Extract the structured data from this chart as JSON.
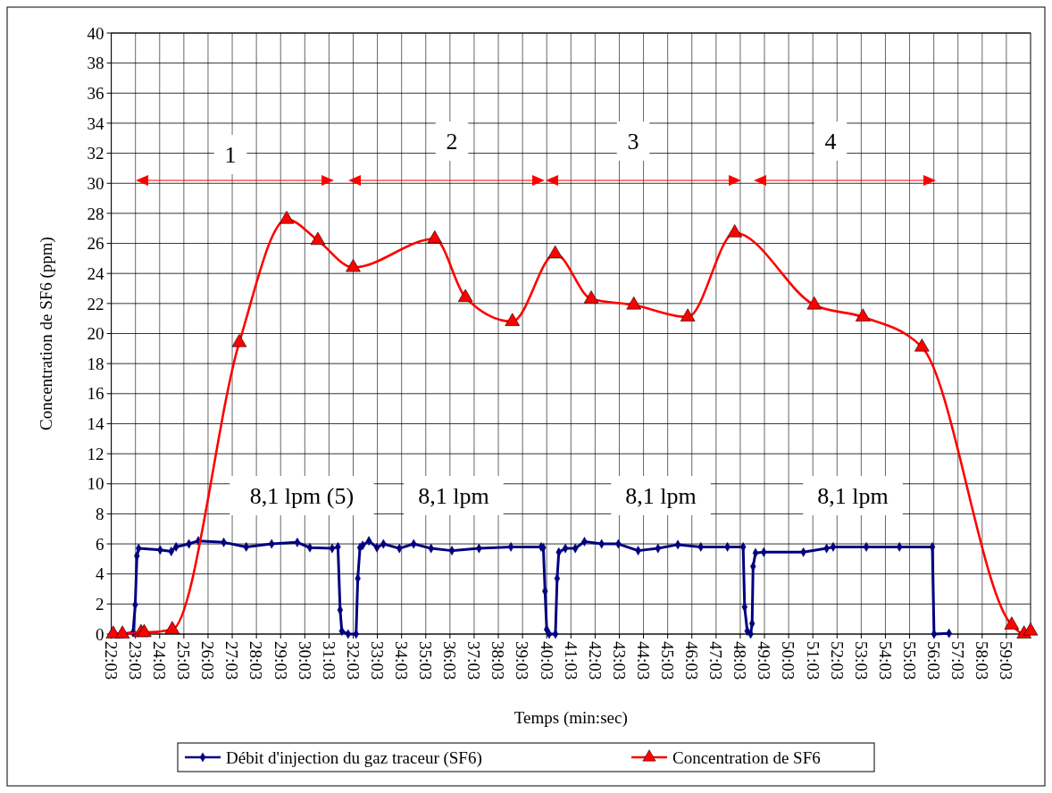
{
  "chart_data": {
    "type": "line",
    "xlabel": "Temps (min:sec)",
    "ylabel": "Concentration de SF6 (ppm)",
    "xlim": [
      22.05,
      60.05
    ],
    "xticks": [
      {
        "value": 22.05,
        "label": "22:03"
      },
      {
        "value": 23.05,
        "label": "23:03"
      },
      {
        "value": 24.05,
        "label": "24:03"
      },
      {
        "value": 25.05,
        "label": "25:03"
      },
      {
        "value": 26.05,
        "label": "26:03"
      },
      {
        "value": 27.05,
        "label": "27:03"
      },
      {
        "value": 28.05,
        "label": "28:03"
      },
      {
        "value": 29.05,
        "label": "29:03"
      },
      {
        "value": 30.05,
        "label": "30:03"
      },
      {
        "value": 31.05,
        "label": "31:03"
      },
      {
        "value": 32.05,
        "label": "32:03"
      },
      {
        "value": 33.05,
        "label": "33:03"
      },
      {
        "value": 34.05,
        "label": "34:03"
      },
      {
        "value": 35.05,
        "label": "35:03"
      },
      {
        "value": 36.05,
        "label": "36:03"
      },
      {
        "value": 37.05,
        "label": "37:03"
      },
      {
        "value": 38.05,
        "label": "38:03"
      },
      {
        "value": 39.05,
        "label": "39:03"
      },
      {
        "value": 40.05,
        "label": "40:03"
      },
      {
        "value": 41.05,
        "label": "41:03"
      },
      {
        "value": 42.05,
        "label": "42:03"
      },
      {
        "value": 43.05,
        "label": "43:03"
      },
      {
        "value": 44.05,
        "label": "44:03"
      },
      {
        "value": 45.05,
        "label": "45:03"
      },
      {
        "value": 46.05,
        "label": "46:03"
      },
      {
        "value": 47.05,
        "label": "47:03"
      },
      {
        "value": 48.05,
        "label": "48:03"
      },
      {
        "value": 49.05,
        "label": "49:03"
      },
      {
        "value": 50.05,
        "label": "50:03"
      },
      {
        "value": 51.05,
        "label": "51:03"
      },
      {
        "value": 52.05,
        "label": "52:03"
      },
      {
        "value": 53.05,
        "label": "53:03"
      },
      {
        "value": 54.05,
        "label": "54:03"
      },
      {
        "value": 55.05,
        "label": "55:03"
      },
      {
        "value": 56.05,
        "label": "56:03"
      },
      {
        "value": 57.05,
        "label": "57:03"
      },
      {
        "value": 58.05,
        "label": "58:03"
      },
      {
        "value": 59.05,
        "label": "59:03"
      }
    ],
    "ylim": [
      0,
      40
    ],
    "yticks": [
      0,
      2,
      4,
      6,
      8,
      10,
      12,
      14,
      16,
      18,
      20,
      22,
      24,
      26,
      28,
      30,
      32,
      34,
      36,
      38,
      40
    ],
    "grid": true,
    "legend": "bottom",
    "line_style": "solid",
    "series": [
      {
        "name": "Débit d'injection du gaz traceur (SF6)",
        "color": "#000080",
        "marker": "diamond",
        "x": [
          22.05,
          22.5,
          22.95,
          23.04,
          23.11,
          23.18,
          24.07,
          24.53,
          24.73,
          25.26,
          25.65,
          26.7,
          27.63,
          28.68,
          29.74,
          30.26,
          31.18,
          31.42,
          31.51,
          31.58,
          31.84,
          32.17,
          32.24,
          32.33,
          32.44,
          32.7,
          33.03,
          33.3,
          33.96,
          34.55,
          35.27,
          36.13,
          37.25,
          38.57,
          39.82,
          39.91,
          39.98,
          40.05,
          40.15,
          40.41,
          40.48,
          40.55,
          40.82,
          41.23,
          41.61,
          42.32,
          43.01,
          43.83,
          44.65,
          45.47,
          46.42,
          47.52,
          48.17,
          48.23,
          48.34,
          48.48,
          48.54,
          48.58,
          48.68,
          49.02,
          50.66,
          51.62,
          51.89,
          53.26,
          54.63,
          55.99,
          56.06,
          56.68
        ],
        "values": [
          0,
          0,
          0.1,
          1.95,
          5.2,
          5.7,
          5.6,
          5.5,
          5.8,
          6.0,
          6.2,
          6.1,
          5.8,
          6.0,
          6.1,
          5.75,
          5.7,
          5.8,
          1.6,
          0.2,
          0,
          0,
          3.7,
          5.75,
          5.9,
          6.2,
          5.75,
          6.0,
          5.7,
          6.0,
          5.7,
          5.55,
          5.7,
          5.8,
          5.8,
          5.75,
          2.85,
          0.3,
          0,
          0,
          3.7,
          5.45,
          5.7,
          5.7,
          6.15,
          6.0,
          6.0,
          5.55,
          5.7,
          5.95,
          5.8,
          5.8,
          5.8,
          1.8,
          0.2,
          0,
          0.7,
          4.5,
          5.4,
          5.45,
          5.45,
          5.7,
          5.8,
          5.8,
          5.8,
          5.8,
          0,
          0.05
        ]
      },
      {
        "name": "Concentration de SF6",
        "color": "#ff0000",
        "marker": "triangle",
        "x": [
          22.13,
          22.51,
          23.28,
          23.41,
          24.57,
          27.34,
          29.3,
          30.59,
          32.05,
          35.42,
          36.69,
          38.63,
          40.4,
          41.89,
          43.65,
          45.88,
          47.82,
          51.11,
          53.12,
          55.56,
          59.27,
          59.78,
          60.05
        ],
        "values": [
          0,
          0,
          0.1,
          0.1,
          0.3,
          19.4,
          27.6,
          26.2,
          24.4,
          26.3,
          22.4,
          20.8,
          25.3,
          22.3,
          21.9,
          21.1,
          26.7,
          21.9,
          21.1,
          19.1,
          0.6,
          0,
          0.2
        ]
      }
    ],
    "annotations": [
      "1",
      "2",
      "3",
      "4",
      "8,1 lpm (5)",
      "8,1 lpm",
      "8,1 lpm",
      "8,1 lpm"
    ]
  }
}
